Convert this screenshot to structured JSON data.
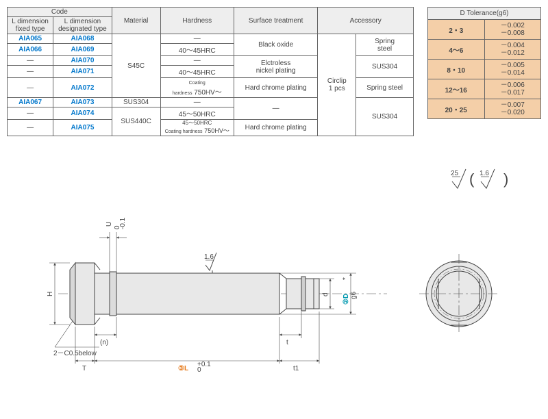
{
  "mainTable": {
    "headers": {
      "code": "Code",
      "codeSubA": "L dimension\nfixed type",
      "codeSubB": "L dimension\ndesignated type",
      "material": "Material",
      "hardness": "Hardness",
      "surface": "Surface treatment",
      "accessory": "Accessory"
    },
    "codes": {
      "r1a": "AIA065",
      "r1b": "AIA068",
      "r2a": "AIA066",
      "r2b": "AIA069",
      "r3a": "—",
      "r3b": "AIA070",
      "r4a": "—",
      "r4b": "AIA071",
      "r5a": "—",
      "r5b": "AIA072",
      "r6a": "AIA067",
      "r6b": "AIA073",
      "r7a": "—",
      "r7b": "AIA074",
      "r8a": "—",
      "r8b": "AIA075"
    },
    "material": {
      "m1": "S45C",
      "m2": "SUS304",
      "m3": "SUS440C"
    },
    "hardness": {
      "h1": "—",
      "h2": "40～45HRC",
      "h3": "—",
      "h4": "40～45HRC",
      "h5pre": "Coating\nhardness",
      "h5": "750HV～",
      "h6": "—",
      "h7": "45～50HRC",
      "h8a": "45～50HRC",
      "h8pre": "Coating hardness",
      "h8b": "750HV～"
    },
    "surface": {
      "s1": "Black oxide",
      "s2": "Elctroless\nnickel plating",
      "s3": "Hard chrome plating",
      "s4": "—",
      "s5": "Hard chrome plating"
    },
    "accessory": {
      "acc_all": "Circlip\n1 pcs",
      "a1": "Spring\nsteel",
      "a2": "SUS304",
      "a3": "Spring steel",
      "a4": "SUS304"
    }
  },
  "tolTable": {
    "header": "D Tolerance(g6)",
    "rows": [
      {
        "d": "2・3",
        "u": "－0.002",
        "l": "－0.008"
      },
      {
        "d": "4～6",
        "u": "－0.004",
        "l": "－0.012"
      },
      {
        "d": "8・10",
        "u": "－0.005",
        "l": "－0.014"
      },
      {
        "d": "12～16",
        "u": "－0.006",
        "l": "－0.017"
      },
      {
        "d": "20・25",
        "u": "－0.007",
        "l": "－0.020"
      }
    ]
  },
  "drawing": {
    "roughTop": "25",
    "roughTop2": "1.6",
    "roughMid": "1.6",
    "chamfer": "2－C0.5below",
    "T": "T",
    "n": "(n)",
    "L": "L",
    "Ltol_u": "+0.1",
    "Ltol_l": "  0",
    "t": "t",
    "t1": "t1",
    "d": "d",
    "D": "D",
    "Dsub": "g6",
    "Dstar": "*",
    "H": "H",
    "U": "U",
    "Utol_u": " 0",
    "Utol_l": "-0.1",
    "circle2": "②",
    "circle3": "③"
  }
}
